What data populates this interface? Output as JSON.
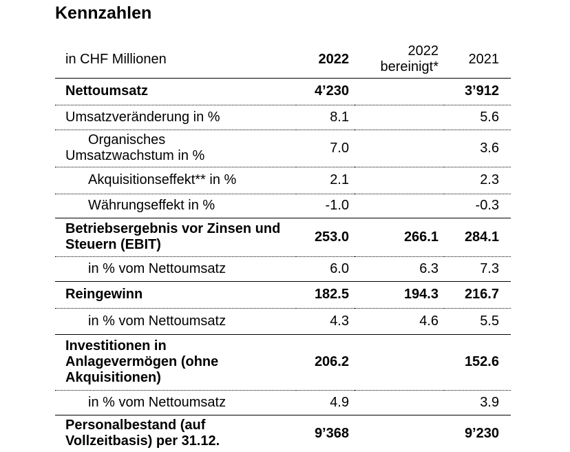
{
  "header": {
    "title": "Kennzahlen"
  },
  "table": {
    "columns": [
      "in CHF Millionen",
      "2022",
      "2022 bereinigt*",
      "2021"
    ],
    "rows": [
      [
        "Nettoumsatz",
        "4’230",
        null,
        "3’912"
      ],
      [
        "Umsatzveränderung in %",
        "8.1",
        null,
        "5.6"
      ],
      [
        "Organisches Umsatzwachstum in %",
        "7.0",
        null,
        "3.6"
      ],
      [
        "Akquisitionseffekt** in %",
        "2.1",
        null,
        "2.3"
      ],
      [
        "Währungseffekt in %",
        "-1.0",
        null,
        "-0.3"
      ],
      [
        "Betriebsergebnis vor Zinsen und Steuern (EBIT)",
        "253.0",
        "266.1",
        "284.1"
      ],
      [
        "in % vom Nettoumsatz",
        "6.0",
        "6.3",
        "7.3"
      ],
      [
        "Reingewinn",
        "182.5",
        "194.3",
        "216.7"
      ],
      [
        "in % vom Nettoumsatz",
        "4.3",
        "4.6",
        "5.5"
      ],
      [
        "Investitionen in Anlagevermögen (ohne Akquisitionen)",
        "206.2",
        null,
        "152.6"
      ],
      [
        "in % vom Nettoumsatz",
        "4.9",
        null,
        "3.9"
      ],
      [
        "Personalbestand (auf Vollzeitbasis) per 31.12.",
        "9’368",
        null,
        "9’230"
      ]
    ]
  }
}
